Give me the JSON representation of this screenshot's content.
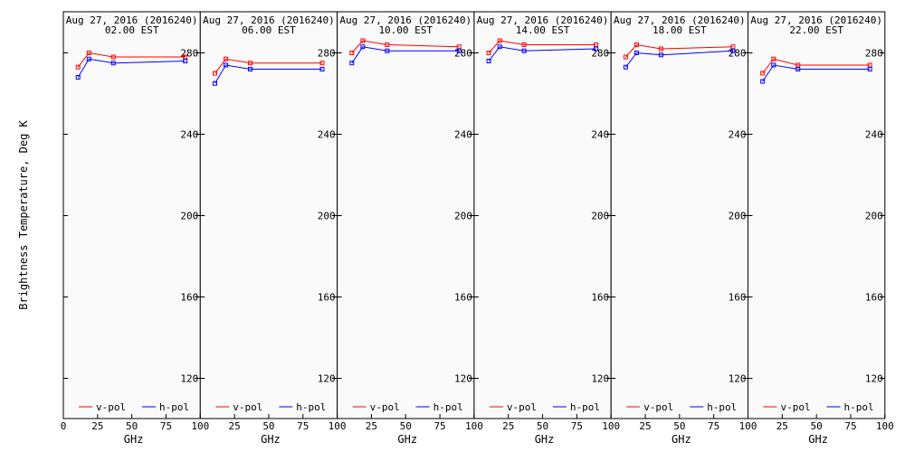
{
  "figure": {
    "ylabel": "Brightness Temperature, Deg K",
    "xlabel": "GHz"
  },
  "colors": {
    "v_pol": "#ff0000",
    "h_pol": "#0000ff",
    "background": "#fafafa",
    "axis": "#000000"
  },
  "chart_data": [
    {
      "type": "line",
      "title": "Aug 27, 2016 (2016240)",
      "subtitle": "02.00 EST",
      "xlabel": "GHz",
      "ylabel": "Brightness Temperature, Deg K",
      "x": [
        10.7,
        18.7,
        36.5,
        89.0
      ],
      "series": [
        {
          "name": "v-pol",
          "color": "#ff0000",
          "values": [
            273,
            280,
            278,
            278
          ]
        },
        {
          "name": "h-pol",
          "color": "#0000ff",
          "values": [
            268,
            277,
            275,
            276
          ]
        }
      ],
      "xlim": [
        0,
        100
      ],
      "ylim": [
        100,
        295
      ],
      "xticks": [
        "0",
        "25",
        "50",
        "75",
        "100"
      ],
      "yticks": [
        "120",
        "160",
        "200",
        "240",
        "280"
      ],
      "legend": "bottom"
    },
    {
      "type": "line",
      "title": "Aug 27, 2016 (2016240)",
      "subtitle": "06.00 EST",
      "xlabel": "GHz",
      "ylabel": "Brightness Temperature, Deg K",
      "x": [
        10.7,
        18.7,
        36.5,
        89.0
      ],
      "series": [
        {
          "name": "v-pol",
          "color": "#ff0000",
          "values": [
            270,
            277,
            275,
            275
          ]
        },
        {
          "name": "h-pol",
          "color": "#0000ff",
          "values": [
            265,
            274,
            272,
            272
          ]
        }
      ],
      "xlim": [
        0,
        100
      ],
      "ylim": [
        100,
        295
      ],
      "xticks": [
        "0",
        "25",
        "50",
        "75",
        "100"
      ],
      "yticks": [
        "120",
        "160",
        "200",
        "240",
        "280"
      ],
      "legend": "bottom"
    },
    {
      "type": "line",
      "title": "Aug 27, 2016 (2016240)",
      "subtitle": "10.00 EST",
      "xlabel": "GHz",
      "ylabel": "Brightness Temperature, Deg K",
      "x": [
        10.7,
        18.7,
        36.5,
        89.0
      ],
      "series": [
        {
          "name": "v-pol",
          "color": "#ff0000",
          "values": [
            280,
            286,
            284,
            283
          ]
        },
        {
          "name": "h-pol",
          "color": "#0000ff",
          "values": [
            275,
            283,
            281,
            281
          ]
        }
      ],
      "xlim": [
        0,
        100
      ],
      "ylim": [
        100,
        295
      ],
      "xticks": [
        "0",
        "25",
        "50",
        "75",
        "100"
      ],
      "yticks": [
        "120",
        "160",
        "200",
        "240",
        "280"
      ],
      "legend": "bottom"
    },
    {
      "type": "line",
      "title": "Aug 27, 2016 (2016240)",
      "subtitle": "14.00 EST",
      "xlabel": "GHz",
      "ylabel": "Brightness Temperature, Deg K",
      "x": [
        10.7,
        18.7,
        36.5,
        89.0
      ],
      "series": [
        {
          "name": "v-pol",
          "color": "#ff0000",
          "values": [
            280,
            286,
            284,
            284
          ]
        },
        {
          "name": "h-pol",
          "color": "#0000ff",
          "values": [
            276,
            283,
            281,
            282
          ]
        }
      ],
      "xlim": [
        0,
        100
      ],
      "ylim": [
        100,
        295
      ],
      "xticks": [
        "0",
        "25",
        "50",
        "75",
        "100"
      ],
      "yticks": [
        "120",
        "160",
        "200",
        "240",
        "280"
      ],
      "legend": "bottom"
    },
    {
      "type": "line",
      "title": "Aug 27, 2016 (2016240)",
      "subtitle": "18.00 EST",
      "xlabel": "GHz",
      "ylabel": "Brightness Temperature, Deg K",
      "x": [
        10.7,
        18.7,
        36.5,
        89.0
      ],
      "series": [
        {
          "name": "v-pol",
          "color": "#ff0000",
          "values": [
            278,
            284,
            282,
            283
          ]
        },
        {
          "name": "h-pol",
          "color": "#0000ff",
          "values": [
            273,
            280,
            279,
            281
          ]
        }
      ],
      "xlim": [
        0,
        100
      ],
      "ylim": [
        100,
        295
      ],
      "xticks": [
        "0",
        "25",
        "50",
        "75",
        "100"
      ],
      "yticks": [
        "120",
        "160",
        "200",
        "240",
        "280"
      ],
      "legend": "bottom"
    },
    {
      "type": "line",
      "title": "Aug 27, 2016 (2016240)",
      "subtitle": "22.00 EST",
      "xlabel": "GHz",
      "ylabel": "Brightness Temperature, Deg K",
      "x": [
        10.7,
        18.7,
        36.5,
        89.0
      ],
      "series": [
        {
          "name": "v-pol",
          "color": "#ff0000",
          "values": [
            270,
            277,
            274,
            274
          ]
        },
        {
          "name": "h-pol",
          "color": "#0000ff",
          "values": [
            266,
            274,
            272,
            272
          ]
        }
      ],
      "xlim": [
        0,
        100
      ],
      "ylim": [
        100,
        295
      ],
      "xticks": [
        "0",
        "25",
        "50",
        "75",
        "100"
      ],
      "yticks": [
        "120",
        "160",
        "200",
        "240",
        "280"
      ],
      "legend": "bottom"
    }
  ]
}
